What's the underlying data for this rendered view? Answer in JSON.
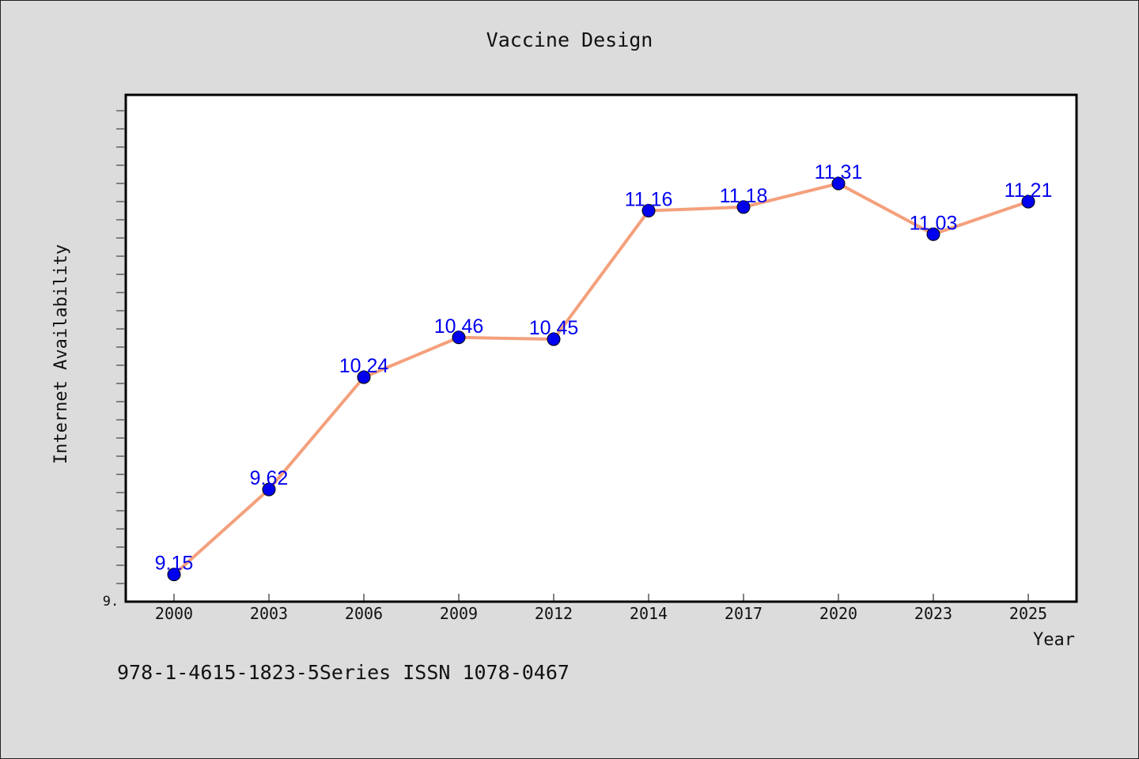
{
  "chart_data": {
    "type": "line",
    "title": "Vaccine Design",
    "xlabel": "Year",
    "ylabel": "Internet Availability",
    "categories": [
      "2000",
      "2003",
      "2006",
      "2009",
      "2012",
      "2014",
      "2017",
      "2020",
      "2023",
      "2025"
    ],
    "series": [
      {
        "values": [
          9.15,
          9.62,
          10.24,
          10.46,
          10.45,
          11.16,
          11.18,
          11.31,
          11.03,
          11.21
        ],
        "labels": [
          "9.15",
          "9.62",
          "10.24",
          "10.46",
          "10.45",
          "11.16",
          "11.18",
          "11.31",
          "11.03",
          "11.21"
        ],
        "line_color": "#f4a07c",
        "marker_color": "#0000ee",
        "label_color": "#0000ee"
      }
    ],
    "ylim": [
      9.0,
      11.8
    ],
    "y_tick_label": "9.",
    "grid": false,
    "legend": "none"
  },
  "footer": {
    "text": "978-1-4615-1823-5Series ISSN 1078-0467"
  },
  "colors": {
    "background": "#dcdcdc",
    "plot_background": "#ffffff",
    "frame": "#000000"
  }
}
